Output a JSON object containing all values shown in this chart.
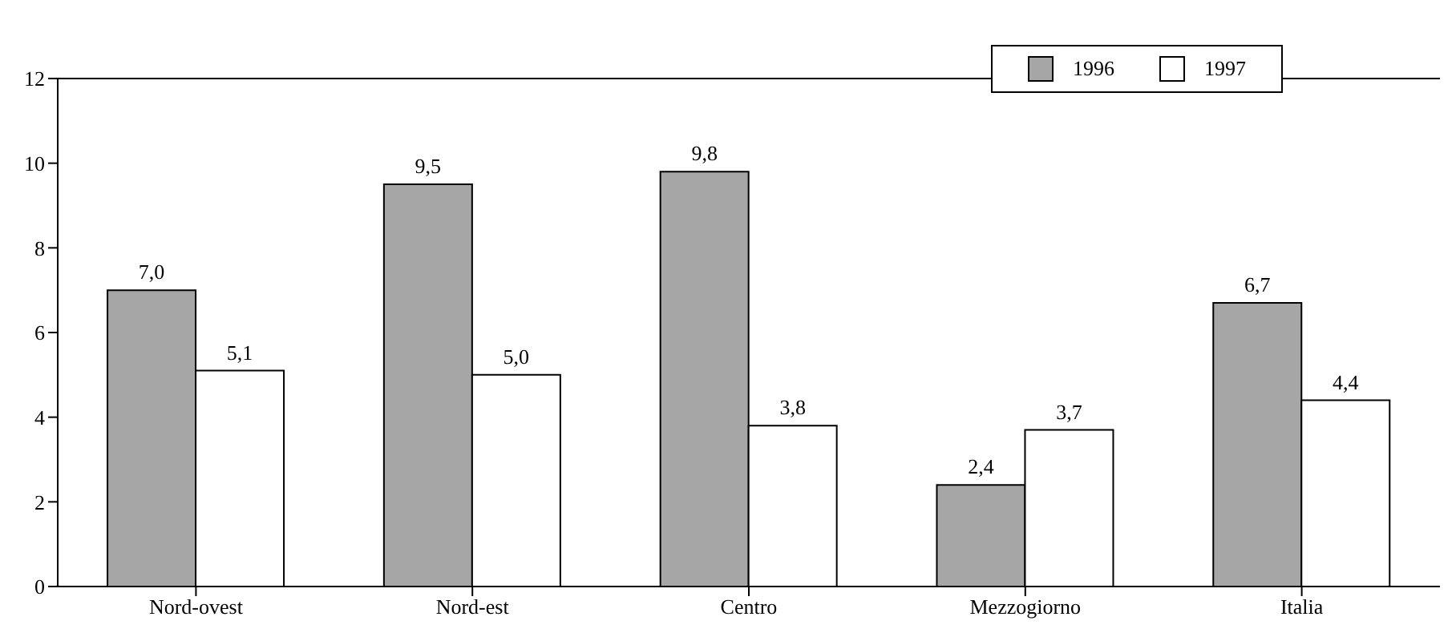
{
  "chart_data": {
    "type": "bar",
    "categories": [
      "Nord-ovest",
      "Nord-est",
      "Centro",
      "Mezzogiorno",
      "Italia"
    ],
    "series": [
      {
        "name": "1996",
        "color": "#a6a6a6",
        "values": [
          7.0,
          9.5,
          9.8,
          2.4,
          6.7
        ],
        "value_labels": [
          "7,0",
          "9,5",
          "9,8",
          "2,4",
          "6,7"
        ]
      },
      {
        "name": "1997",
        "color": "#ffffff",
        "values": [
          5.1,
          5.0,
          3.8,
          3.7,
          4.4
        ],
        "value_labels": [
          "5,1",
          "5,0",
          "3,8",
          "3,7",
          "4,4"
        ]
      }
    ],
    "ylim": [
      0,
      12
    ],
    "yticks": [
      0,
      2,
      4,
      6,
      8,
      10,
      12
    ],
    "grid": false,
    "legend": "top right"
  }
}
